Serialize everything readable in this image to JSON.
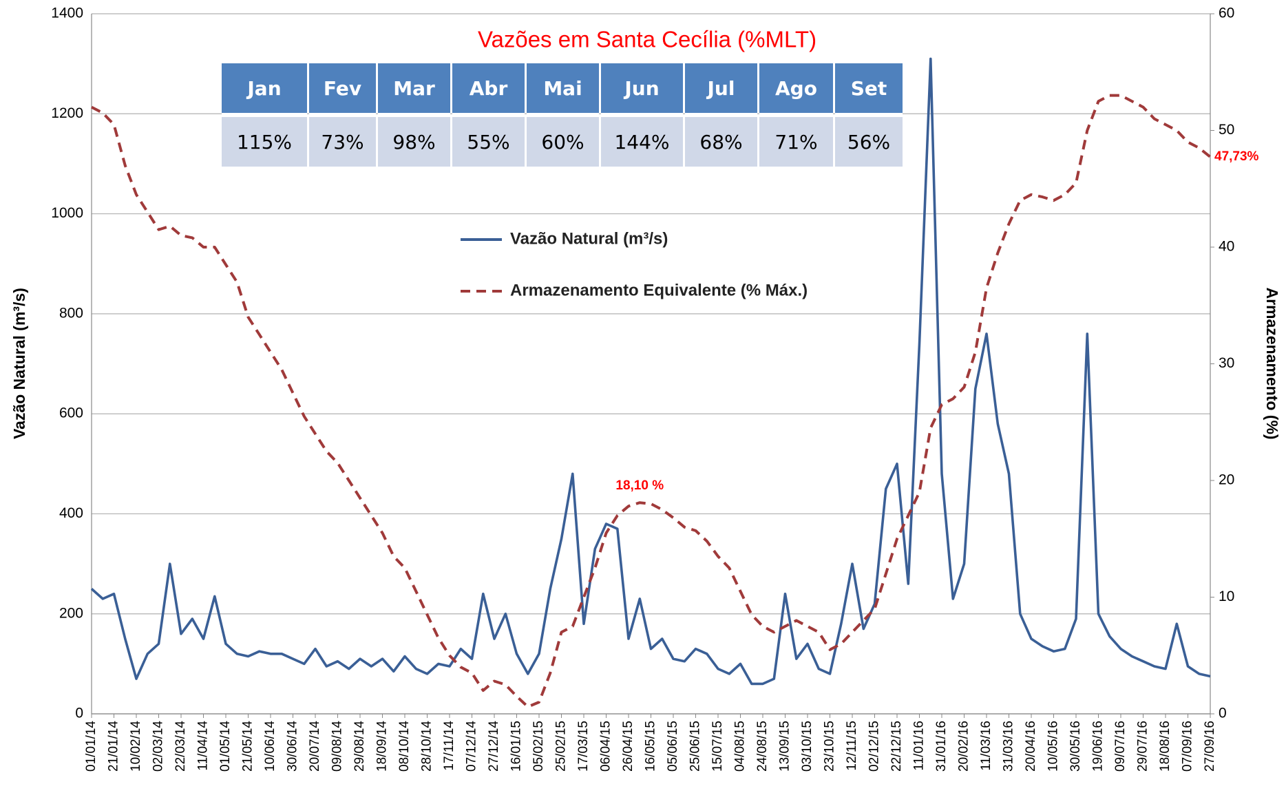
{
  "chart_data": {
    "type": "line",
    "title": "Vazões em Santa Cecília (%MLT)",
    "ylabel": "Vazão Natural (m³/s)",
    "y2label": "Armazenamento (%)",
    "x": [
      "01/01/14",
      "11/01/14",
      "21/01/14",
      "31/01/14",
      "10/02/14",
      "20/02/14",
      "02/03/14",
      "12/03/14",
      "22/03/14",
      "01/04/14",
      "11/04/14",
      "21/04/14",
      "01/05/14",
      "11/05/14",
      "21/05/14",
      "31/05/14",
      "10/06/14",
      "20/06/14",
      "30/06/14",
      "10/07/14",
      "20/07/14",
      "30/07/14",
      "09/08/14",
      "19/08/14",
      "29/08/14",
      "08/09/14",
      "18/09/14",
      "28/09/14",
      "08/10/14",
      "18/10/14",
      "28/10/14",
      "07/11/14",
      "17/11/14",
      "27/11/14",
      "07/12/14",
      "17/12/14",
      "27/12/14",
      "06/01/15",
      "16/01/15",
      "26/01/15",
      "05/02/15",
      "15/02/15",
      "25/02/15",
      "07/03/15",
      "17/03/15",
      "27/03/15",
      "06/04/15",
      "16/04/15",
      "26/04/15",
      "06/05/15",
      "16/05/15",
      "26/05/15",
      "05/06/15",
      "15/06/15",
      "25/06/15",
      "05/07/15",
      "15/07/15",
      "25/07/15",
      "04/08/15",
      "14/08/15",
      "24/08/15",
      "03/09/15",
      "13/09/15",
      "23/09/15",
      "03/10/15",
      "13/10/15",
      "23/10/15",
      "02/11/15",
      "12/11/15",
      "22/11/15",
      "02/12/15",
      "12/12/15",
      "22/12/15",
      "01/01/16",
      "11/01/16",
      "21/01/16",
      "31/01/16",
      "10/02/16",
      "20/02/16",
      "01/03/16",
      "11/03/16",
      "21/03/16",
      "31/03/16",
      "10/04/16",
      "20/04/16",
      "30/04/16",
      "10/05/16",
      "20/05/16",
      "30/05/16",
      "09/06/16",
      "19/06/16",
      "29/06/16",
      "09/07/16",
      "19/07/16",
      "29/07/16",
      "08/08/16",
      "18/08/16",
      "28/08/16",
      "07/09/16",
      "17/09/16",
      "27/09/16"
    ],
    "xlim": [
      "01/01/14",
      "27/09/16"
    ],
    "xticks": [
      "01/01/14",
      "21/01/14",
      "10/02/14",
      "02/03/14",
      "22/03/14",
      "11/04/14",
      "01/05/14",
      "21/05/14",
      "10/06/14",
      "30/06/14",
      "20/07/14",
      "09/08/14",
      "29/08/14",
      "18/09/14",
      "08/10/14",
      "28/10/14",
      "17/11/14",
      "07/12/14",
      "27/12/14",
      "16/01/15",
      "05/02/15",
      "25/02/15",
      "17/03/15",
      "06/04/15",
      "26/04/15",
      "16/05/15",
      "05/06/15",
      "25/06/15",
      "15/07/15",
      "04/08/15",
      "24/08/15",
      "13/09/15",
      "03/10/15",
      "23/10/15",
      "12/11/15",
      "02/12/15",
      "22/12/15",
      "11/01/16",
      "31/01/16",
      "20/02/16",
      "11/03/16",
      "31/03/16",
      "20/04/16",
      "10/05/16",
      "30/05/16",
      "19/06/16",
      "09/07/16",
      "29/07/16",
      "18/08/16",
      "07/09/16",
      "27/09/16"
    ],
    "ylim": [
      0,
      1400
    ],
    "yticks": [
      0,
      200,
      400,
      600,
      800,
      1000,
      1200,
      1400
    ],
    "y2lim": [
      0,
      60
    ],
    "y2ticks": [
      0,
      10,
      20,
      30,
      40,
      50,
      60
    ],
    "grid": true,
    "series": [
      {
        "name": "Vazão Natural (m³/s)",
        "color": "#3a5f96",
        "style": "solid",
        "values": [
          250,
          230,
          240,
          150,
          70,
          120,
          140,
          300,
          160,
          190,
          150,
          235,
          140,
          120,
          115,
          125,
          120,
          120,
          110,
          100,
          130,
          95,
          105,
          90,
          110,
          95,
          110,
          85,
          115,
          90,
          80,
          100,
          95,
          130,
          110,
          240,
          150,
          200,
          120,
          80,
          120,
          250,
          350,
          480,
          180,
          330,
          380,
          370,
          150,
          230,
          130,
          150,
          110,
          105,
          130,
          120,
          90,
          80,
          100,
          60,
          60,
          70,
          240,
          110,
          140,
          90,
          80,
          180,
          300,
          170,
          220,
          450,
          500,
          260,
          740,
          1310,
          480,
          230,
          300,
          650,
          760,
          580,
          480,
          200,
          150,
          135,
          125,
          130,
          190,
          760,
          200,
          155,
          130,
          115,
          105,
          95,
          90,
          180,
          95,
          80,
          75
        ]
      },
      {
        "name": "Armazenamento Equivalente (% Máx.)",
        "color": "#a03a3a",
        "style": "dashed",
        "axis": "y2",
        "values": [
          52,
          51.5,
          50.5,
          47,
          44.5,
          43,
          41.5,
          41.8,
          41,
          40.8,
          40,
          40,
          38.5,
          37,
          34,
          32.5,
          31,
          29.5,
          27.5,
          25.5,
          24,
          22.5,
          21.5,
          20,
          18.5,
          17,
          15.5,
          13.5,
          12.5,
          10.5,
          8.5,
          6.5,
          5,
          4,
          3.5,
          2,
          2.8,
          2.5,
          1.5,
          0.6,
          1,
          3.5,
          7,
          7.5,
          10,
          12.5,
          15.5,
          17,
          17.8,
          18.1,
          18,
          17.5,
          16.8,
          16,
          15.7,
          14.8,
          13.5,
          12.5,
          10.5,
          8.5,
          7.5,
          7,
          7.5,
          8,
          7.5,
          7,
          5.5,
          6,
          7,
          8,
          9,
          12,
          15,
          17,
          19,
          24.5,
          26.5,
          27,
          28,
          31,
          36.5,
          39.5,
          42,
          44,
          44.5,
          44.3,
          44,
          44.5,
          45.5,
          50,
          52.5,
          53,
          53,
          52.5,
          52,
          51,
          50.5,
          50,
          49,
          48.5,
          47.73
        ],
        "value_labels": [
          null,
          null,
          null,
          null,
          null,
          null,
          null,
          null,
          null,
          null,
          null,
          null,
          null,
          null,
          null,
          null,
          null,
          null,
          null,
          null,
          null,
          null,
          null,
          null,
          null,
          null,
          null,
          null,
          null,
          null,
          null,
          null,
          null,
          null,
          null,
          null,
          null,
          null,
          null,
          null,
          null,
          null,
          null,
          null,
          null,
          null,
          null,
          null,
          null,
          "18,10 %",
          null,
          null,
          null,
          null,
          null,
          null,
          null,
          null,
          null,
          null,
          null,
          null,
          null,
          null,
          null,
          null,
          null,
          null,
          null,
          null,
          null,
          null,
          null,
          null,
          null,
          null,
          null,
          null,
          null,
          null,
          null,
          null,
          null,
          null,
          null,
          null,
          null,
          null,
          null,
          null,
          null,
          null,
          null,
          null,
          null,
          null,
          null,
          null,
          null,
          null,
          "47,73%"
        ]
      }
    ]
  },
  "table": {
    "header": [
      "Jan",
      "Fev",
      "Mar",
      "Abr",
      "Mai",
      "Jun",
      "Jul",
      "Ago",
      "Set"
    ],
    "widths": null,
    "rows": [
      [
        "115%",
        "73%",
        "98%",
        "55%",
        "60%",
        "144%",
        "68%",
        "71%",
        "56%"
      ]
    ]
  }
}
